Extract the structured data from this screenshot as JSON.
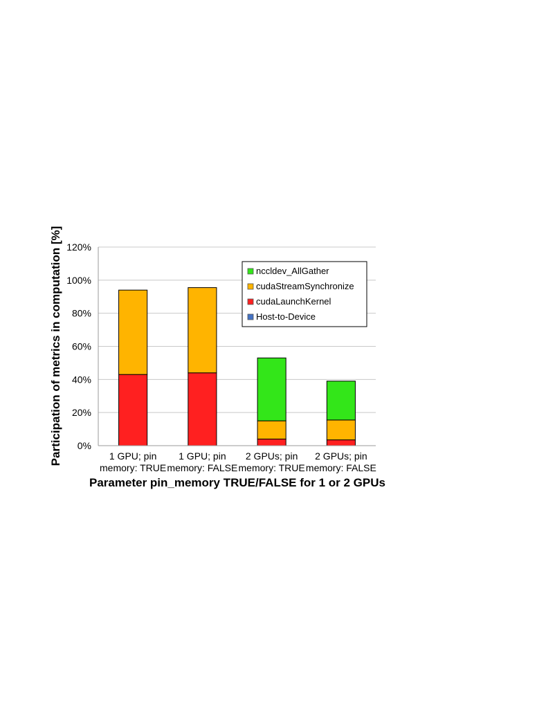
{
  "chart_data": {
    "type": "bar",
    "stacked": true,
    "title": "",
    "xlabel": "Parameter pin_memory TRUE/FALSE for 1 or 2 GPUs",
    "ylabel": "Participation of metrics in computation [%]",
    "ylim": [
      0,
      120
    ],
    "yticks": [
      "0%",
      "20%",
      "40%",
      "60%",
      "80%",
      "100%",
      "120%"
    ],
    "grid": true,
    "legend_position": "top-right",
    "categories": [
      [
        "1 GPU; pin",
        "memory: TRUE"
      ],
      [
        "1 GPU; pin",
        "memory: FALSE"
      ],
      [
        "2 GPUs; pin",
        "memory: TRUE"
      ],
      [
        "2 GPUs; pin",
        "memory: FALSE"
      ]
    ],
    "series": [
      {
        "name": "Host-to-Device",
        "color": "#4472c4",
        "values": [
          0,
          0,
          0,
          0
        ]
      },
      {
        "name": "cudaLaunchKernel",
        "color": "#ff2020",
        "values": [
          43,
          44,
          4,
          3.5
        ]
      },
      {
        "name": "cudaStreamSynchronize",
        "color": "#ffb400",
        "values": [
          51,
          51.5,
          11,
          12
        ]
      },
      {
        "name": "nccldev_AllGather",
        "color": "#33e619",
        "values": [
          0,
          0,
          38,
          23.5
        ]
      }
    ],
    "legend_order": [
      "nccldev_AllGather",
      "cudaStreamSynchronize",
      "cudaLaunchKernel",
      "Host-to-Device"
    ]
  }
}
